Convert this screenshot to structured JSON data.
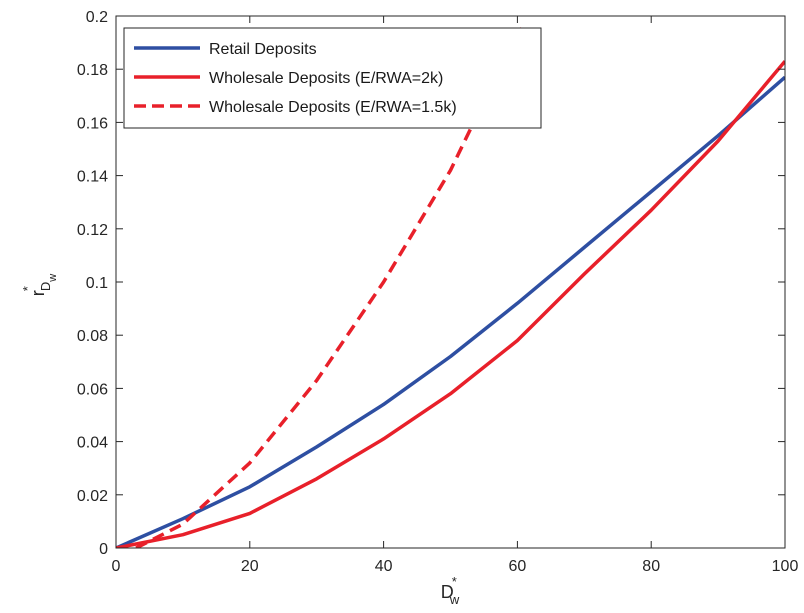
{
  "chart_data": {
    "type": "line",
    "title": "",
    "xlabel": {
      "main": "D",
      "sup": "*",
      "sub": "w"
    },
    "ylabel": {
      "main": "r",
      "sup": "*",
      "sub": "D",
      "subsub": "w"
    },
    "xlim": [
      0,
      100
    ],
    "ylim": [
      0,
      0.2
    ],
    "xticks": [
      0,
      20,
      40,
      60,
      80,
      100
    ],
    "xtick_labels": [
      "0",
      "20",
      "40",
      "60",
      "80",
      "100"
    ],
    "yticks": [
      0,
      0.02,
      0.04,
      0.06,
      0.08,
      0.1,
      0.12,
      0.14,
      0.16,
      0.18,
      0.2
    ],
    "ytick_labels": [
      "0",
      "0.02",
      "0.04",
      "0.06",
      "0.08",
      "0.1",
      "0.12",
      "0.14",
      "0.16",
      "0.18",
      "0.2"
    ],
    "grid": false,
    "legend_position": "top-left",
    "series": [
      {
        "name": "Retail Deposits",
        "color": "#2e4fa2",
        "dash": "solid",
        "x": [
          0,
          10,
          20,
          30,
          40,
          50,
          60,
          70,
          80,
          90,
          100
        ],
        "y": [
          0,
          0.011,
          0.023,
          0.038,
          0.054,
          0.072,
          0.092,
          0.113,
          0.134,
          0.155,
          0.177
        ]
      },
      {
        "name": "Wholesale Deposits (E/RWA=2k)",
        "color": "#e8202a",
        "dash": "solid",
        "x": [
          0,
          10,
          20,
          30,
          40,
          50,
          60,
          70,
          80,
          90,
          100
        ],
        "y": [
          0,
          0.005,
          0.013,
          0.026,
          0.041,
          0.058,
          0.078,
          0.103,
          0.127,
          0.153,
          0.183
        ]
      },
      {
        "name": "Wholesale Deposits (E/RWA=1.5k)",
        "color": "#e8202a",
        "dash": "dashed",
        "x": [
          3,
          10,
          20,
          30,
          40,
          50,
          55,
          61
        ],
        "y": [
          0,
          0.009,
          0.032,
          0.063,
          0.1,
          0.142,
          0.168,
          0.197
        ]
      }
    ]
  }
}
